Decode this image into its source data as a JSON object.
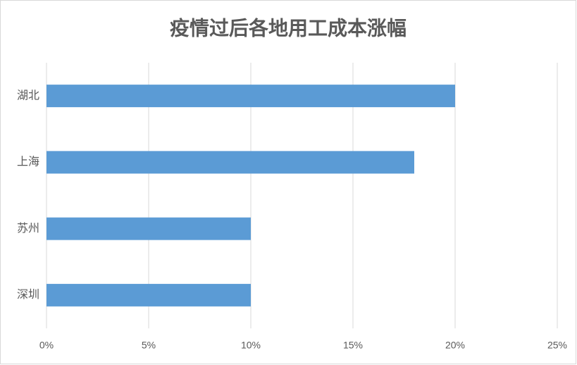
{
  "chart_data": {
    "type": "hbar",
    "title": "疫情过后各地用工成本涨幅",
    "categories": [
      "湖北",
      "上海",
      "苏州",
      "深圳"
    ],
    "values": [
      20,
      18,
      10,
      10
    ],
    "color": "#5b9bd5",
    "xlim": [
      0,
      25
    ],
    "xticks": [
      {
        "value": 0,
        "label": "0%"
      },
      {
        "value": 5,
        "label": "5%"
      },
      {
        "value": 10,
        "label": "10%"
      },
      {
        "value": 15,
        "label": "15%"
      },
      {
        "value": 20,
        "label": "20%"
      },
      {
        "value": 25,
        "label": "25%"
      }
    ],
    "grid": true
  }
}
